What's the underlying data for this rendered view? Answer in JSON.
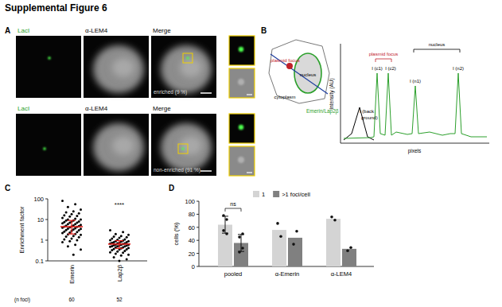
{
  "figure": {
    "title": "Supplemental Figure 6",
    "panel_labels": [
      "A",
      "B",
      "C",
      "D"
    ],
    "panel_a": {
      "channels": [
        "LacI",
        "α-LEM4",
        "Merge"
      ],
      "rows": [
        "enriched (9 %)",
        "non-enriched (91 %)"
      ]
    },
    "panel_b": {
      "schematic": {
        "focus": "plasmid focus",
        "nucleus": "nucleus",
        "cytoplasm": "cytoplasm",
        "stain": "Emerin/Lap2β"
      },
      "profile": {
        "ylabel": "Intensity (AU)",
        "xlabel": "pixels",
        "background": [
          "I (back",
          "ground)"
        ],
        "focus": "plasmid focus",
        "nucleus": "nucleus",
        "peaks": [
          "I (c1)",
          "I (c2)",
          "I (n1)",
          "I (n2)"
        ]
      }
    }
  },
  "chart_data": [
    {
      "type": "scatter",
      "ylabel": "Enrichment factor",
      "categories": [
        "Emerin",
        "Lap2β"
      ],
      "values": [
        [
          80,
          55,
          40,
          30,
          25,
          22,
          20,
          18,
          16,
          15,
          14,
          12,
          11,
          10,
          10,
          9,
          9,
          8,
          8,
          7.5,
          7,
          7,
          6.5,
          6,
          6,
          5.5,
          5.2,
          5,
          4.8,
          4.6,
          4.5,
          4.4,
          4.2,
          4,
          3.8,
          3.6,
          3.5,
          3.3,
          3.1,
          3,
          2.8,
          2.6,
          2.5,
          2.3,
          2.2,
          2,
          1.9,
          1.8,
          1.6,
          1.5,
          1.4,
          1.2,
          1.1,
          1,
          0.9,
          0.8,
          0.6,
          0.5,
          0.35,
          0.2
        ],
        [
          3,
          2.5,
          2,
          1.8,
          1.6,
          1.5,
          1.4,
          1.3,
          1.2,
          1.1,
          1.05,
          1,
          0.95,
          0.9,
          0.9,
          0.85,
          0.8,
          0.8,
          0.75,
          0.75,
          0.7,
          0.7,
          0.68,
          0.65,
          0.62,
          0.6,
          0.6,
          0.58,
          0.55,
          0.55,
          0.52,
          0.5,
          0.5,
          0.48,
          0.45,
          0.45,
          0.42,
          0.4,
          0.38,
          0.36,
          0.35,
          0.33,
          0.3,
          0.28,
          0.26,
          0.25,
          0.22,
          0.2,
          0.18,
          0.15,
          0.12,
          0.1
        ]
      ],
      "median": [
        4.5,
        0.65
      ],
      "iqr": [
        [
          2,
          9
        ],
        [
          0.4,
          0.95
        ]
      ],
      "n_label": "(n foci)",
      "n": [
        60,
        52
      ],
      "significance": "****",
      "color": "#000000",
      "ylim": [
        0.1,
        100
      ],
      "yticks": [
        0.1,
        1,
        10,
        100
      ],
      "log": "y"
    },
    {
      "type": "bar",
      "ylabel": "cells (%)",
      "categories": [
        "pooled",
        "α-Emerin",
        "α-LEM4"
      ],
      "series": [
        {
          "name": "1",
          "color": "#d4d4d4",
          "values": [
            64,
            56,
            73
          ],
          "errors": [
            13,
            null,
            null
          ],
          "points": [
            [
              78,
              72,
              55,
              50
            ],
            [
              66,
              46
            ],
            [
              76,
              71
            ]
          ]
        },
        {
          "name": ">1 foci/cell",
          "color": "#808080",
          "values": [
            36,
            44,
            27
          ],
          "errors": [
            13,
            null,
            null
          ],
          "points": [
            [
              22,
              28,
              45,
              50
            ],
            [
              34,
              54
            ],
            [
              24,
              29
            ]
          ]
        }
      ],
      "significance": "ns",
      "legend": "top",
      "ylim": [
        0,
        100
      ],
      "yticks": [
        0,
        20,
        40,
        60,
        80,
        100
      ]
    }
  ]
}
